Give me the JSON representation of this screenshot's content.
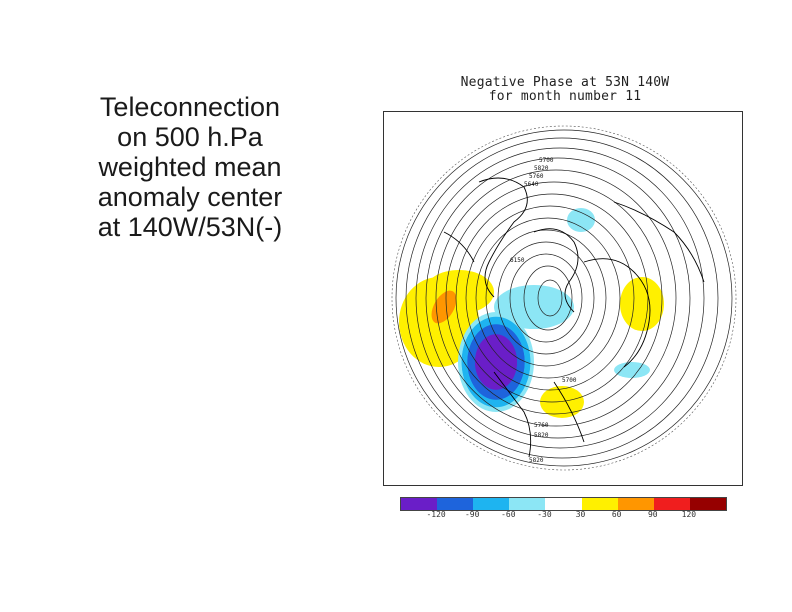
{
  "slide": {
    "text_lines": [
      "Teleconnection",
      "on 500 h.Pa",
      "weighted mean",
      "anomaly center",
      "at 140W/53N(-)"
    ]
  },
  "figure": {
    "title_line1": "Negative Phase at  53N 140W",
    "title_line2": "for month number 11",
    "contour_labels": [
      "5700",
      "5820",
      "5760",
      "5640",
      "6150"
    ]
  },
  "colorbar": {
    "colors": [
      "#6a1ec8",
      "#1e64dc",
      "#1eb4f0",
      "#8ce6f5",
      "#ffffff",
      "#fff000",
      "#ff9600",
      "#f01e1e",
      "#960000"
    ],
    "labels": [
      "-120",
      "-90",
      "-60",
      "-30",
      "30",
      "60",
      "90",
      "120"
    ]
  }
}
